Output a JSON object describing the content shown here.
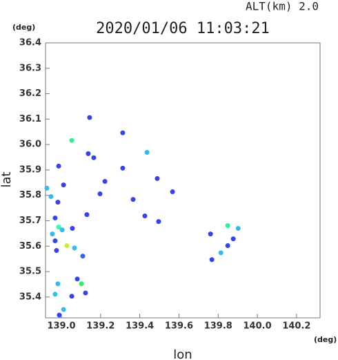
{
  "chart_data": {
    "type": "scatter",
    "title": "2020/01/06 11:03:21",
    "subtitle": "ALT(km) 2.0",
    "x_label": "lon",
    "y_label": "lat",
    "x_unit": "(deg)",
    "y_unit": "(deg)",
    "xlim": [
      138.919,
      140.32
    ],
    "ylim": [
      35.318,
      36.4
    ],
    "xticks": [
      {
        "value": 139,
        "label": "139.0"
      },
      139.2,
      139.4,
      139.6,
      139.8,
      {
        "value": 140,
        "label": "140.0"
      },
      140.2
    ],
    "yticks": [
      35.4,
      35.5,
      35.6,
      35.7,
      35.8,
      35.9,
      {
        "value": 36,
        "label": "36.0"
      },
      36.1,
      36.2,
      36.3,
      36.4
    ],
    "x": [
      139.144,
      139.053,
      139.137,
      139.165,
      138.986,
      139.011,
      138.926,
      138.947,
      138.982,
      138.968,
      138.986,
      139.004,
      138.954,
      138.968,
      139.028,
      139.067,
      139.056,
      139.109,
      138.975,
      139.081,
      139.102,
      139.123,
      138.982,
      138.968,
      139.011,
      138.989,
      139.053,
      139.313,
      139.313,
      139.489,
      139.366,
      139.496,
      139.567,
      139.849,
      139.902,
      139.761,
      139.814,
      139.768,
      139.849,
      139.222,
      139.437,
      139.197,
      139.877,
      139.426,
      139.13
    ],
    "y": [
      36.106,
      36.016,
      35.964,
      35.948,
      35.915,
      35.841,
      35.828,
      35.795,
      35.773,
      35.711,
      35.675,
      35.664,
      35.648,
      35.621,
      35.602,
      35.593,
      35.67,
      35.561,
      35.583,
      35.471,
      35.452,
      35.416,
      35.452,
      35.411,
      35.351,
      35.329,
      35.403,
      36.046,
      35.907,
      35.866,
      35.784,
      35.697,
      35.814,
      35.681,
      35.67,
      35.648,
      35.574,
      35.547,
      35.602,
      35.855,
      35.969,
      35.806,
      35.629,
      35.719,
      35.724
    ],
    "colors": [
      "#3344ee",
      "#33ee99",
      "#3344ee",
      "#3344ee",
      "#3344ee",
      "#3344ee",
      "#33bbee",
      "#33bbee",
      "#3344ee",
      "#3344ee",
      "#33ffaa",
      "#33bbee",
      "#33bbee",
      "#3344ee",
      "#ccee33",
      "#33bbee",
      "#3344ee",
      "#3366ee",
      "#3344ee",
      "#3344ee",
      "#33ee66",
      "#3344ee",
      "#33bbee",
      "#33bbee",
      "#33bbee",
      "#3344ee",
      "#3344ee",
      "#3344ee",
      "#3344ee",
      "#3344ee",
      "#3344ee",
      "#3344ee",
      "#3344ee",
      "#33ee99",
      "#33bbee",
      "#3344ee",
      "#33bbee",
      "#3344ee",
      "#3344ee",
      "#3344ee",
      "#33bbee",
      "#3344ee",
      "#3344ee",
      "#3344ee",
      "#3344ee"
    ]
  }
}
